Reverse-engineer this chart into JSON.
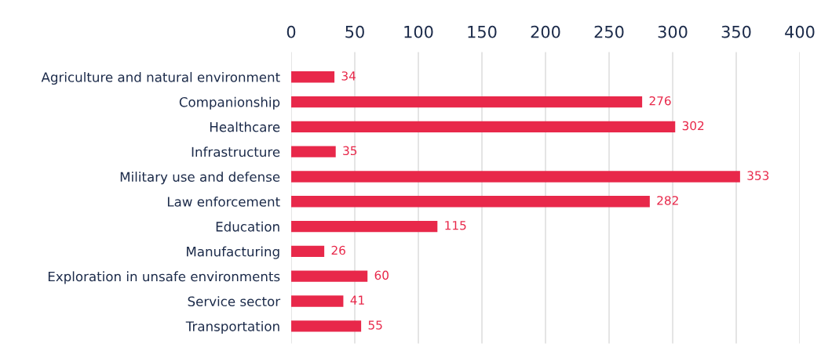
{
  "chart_data": {
    "type": "bar",
    "orientation": "horizontal",
    "categories": [
      "Agriculture and natural environment",
      "Companionship",
      "Healthcare",
      "Infrastructure",
      "Military use and defense",
      "Law enforcement",
      "Education",
      "Manufacturing",
      "Exploration in unsafe environments",
      "Service sector",
      "Transportation"
    ],
    "values": [
      34,
      276,
      302,
      35,
      353,
      282,
      115,
      26,
      60,
      41,
      55
    ],
    "color": "#e8284a",
    "data_labels": true,
    "xlim": [
      0,
      400
    ],
    "xticks": [
      0,
      50,
      100,
      150,
      200,
      250,
      300,
      350,
      400
    ],
    "grid": "x",
    "legend": false
  }
}
